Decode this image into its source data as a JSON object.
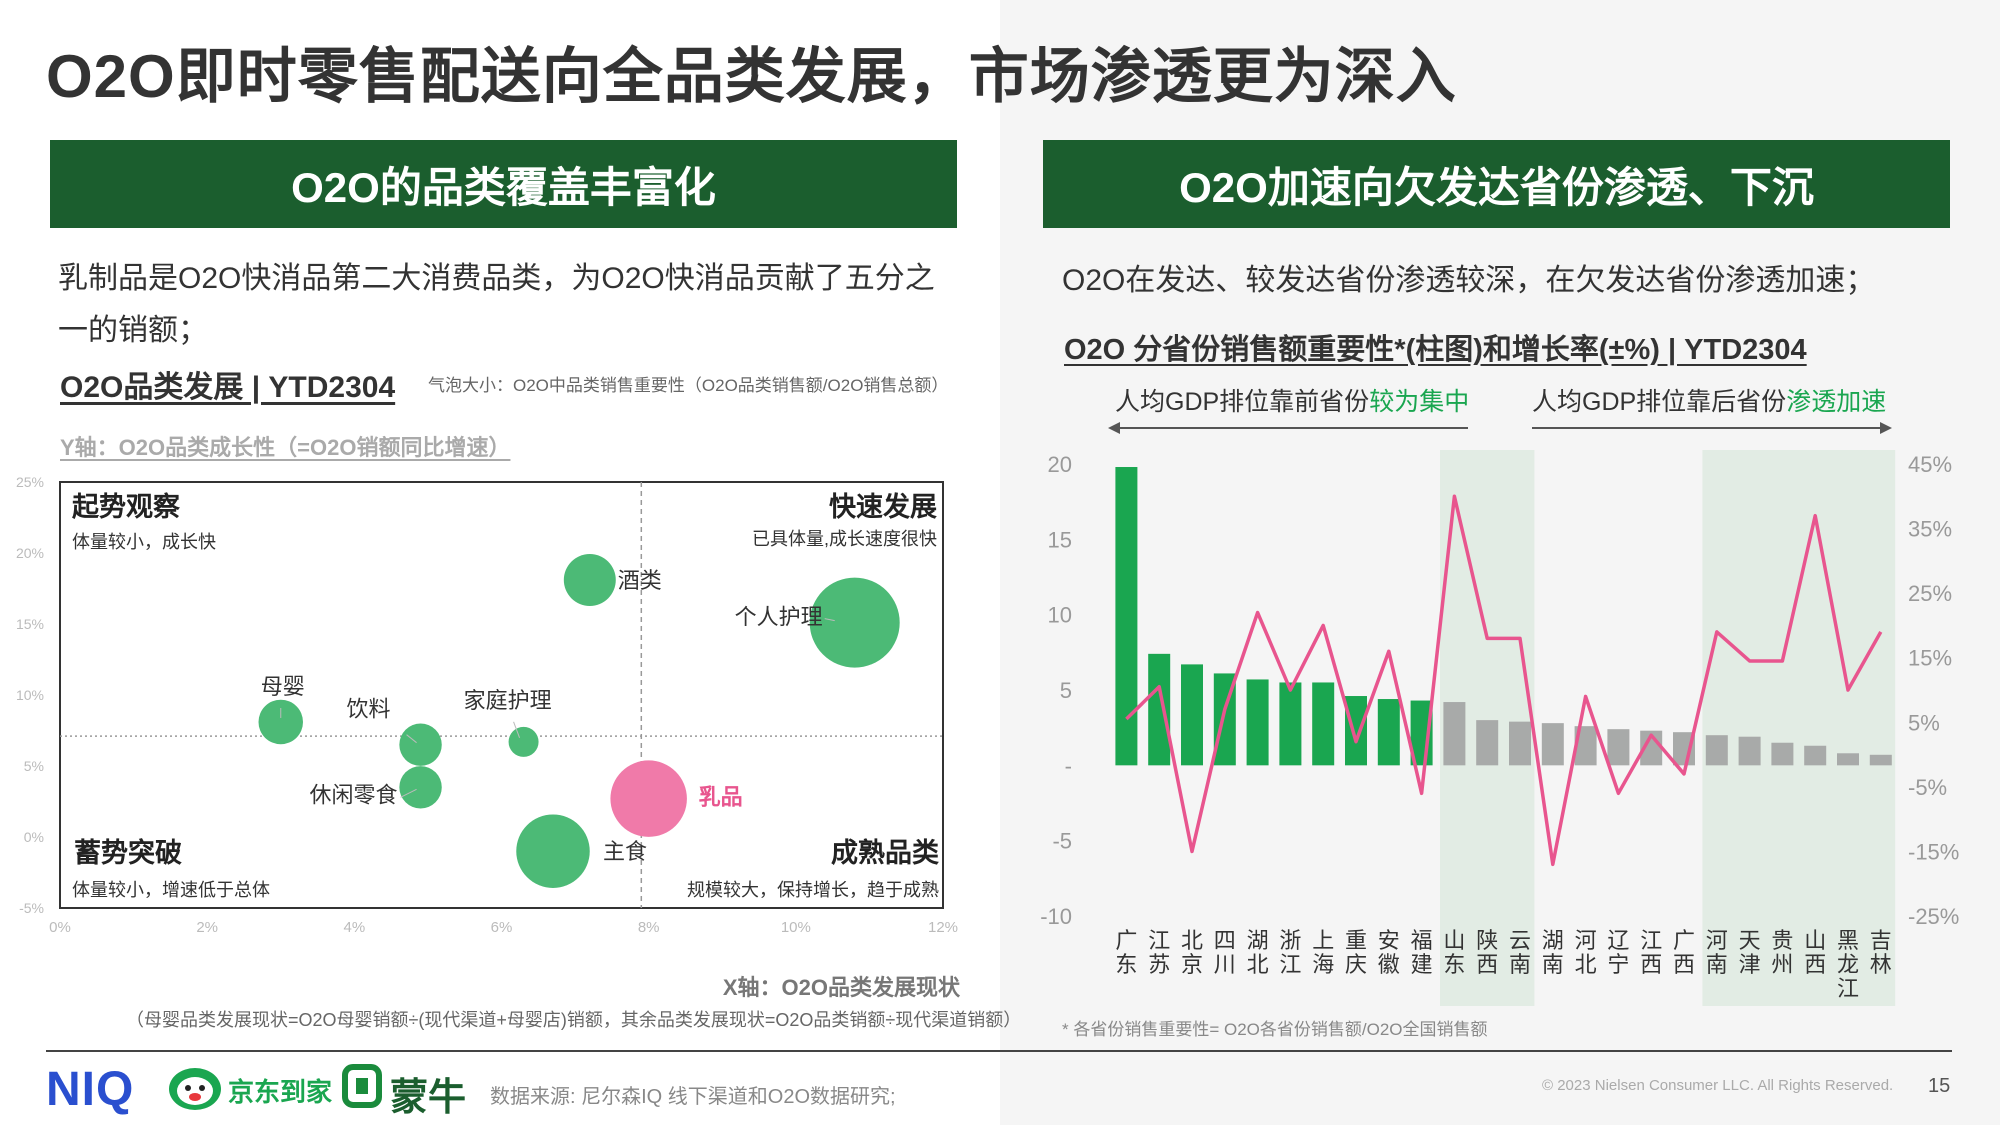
{
  "page": {
    "title": "O2O即时零售配送向全品类发展，市场渗透更为深入",
    "page_number": "15",
    "copyright": "© 2023 Nielsen Consumer LLC. All Rights Reserved.",
    "source": "数据来源: 尼尔森IQ 线下渠道和O2O数据研究;"
  },
  "logos": {
    "niq": "NIQ",
    "jd": "京东到家",
    "mengniu": "蒙牛"
  },
  "colors": {
    "banner": "#1b5e2e",
    "bubble_green": "#4cba76",
    "bubble_pink": "#f07aa9",
    "bar_green": "#1aa650",
    "bar_gray": "#a8aaa9",
    "line_pink": "#e8558e",
    "band": "#e2ece4"
  },
  "left": {
    "banner": "O2O的品类覆盖丰富化",
    "desc1": "乳制品是O2O快消品第二大消费品类，为O2O快消品贡献了五分之",
    "desc2": "一的销额；",
    "subtitle": "O2O品类发展 | YTD2304",
    "bubble_note": "气泡大小：O2O中品类销售重要性（O2O品类销售额/O2O销售总额）",
    "y_axis_title": "Y轴：O2O品类成长性（=O2O销额同比增速）",
    "x_axis_title": "X轴：O2O品类发展现状",
    "x_note": "（母婴品类发展现状=O2O母婴销额÷(现代渠道+母婴店)销额，其余品类发展现状=O2O品类销额÷现代渠道销额）",
    "quadrants": {
      "tl_title": "起势观察",
      "tl_sub": "体量较小，成长快",
      "tr_title": "快速发展",
      "tr_sub": "已具体量,成长速度很快",
      "bl_title": "蓄势突破",
      "bl_sub": "体量较小，增速低于总体",
      "br_title": "成熟品类",
      "br_sub": "规模较大，保持增长，趋于成熟"
    }
  },
  "right": {
    "banner": "O2O加速向欠发达省份渗透、下沉",
    "desc": "O2O在发达、较发达省份渗透较深，在欠发达省份渗透加速；",
    "subtitle": "O2O 分省份销售额重要性*(柱图)和增长率(±%) | YTD2304",
    "note": "* 各省份销售重要性= O2O各省份销售额/O2O全国销售额",
    "arrow_left_plain": "人均GDP排位靠前省份",
    "arrow_left_hl": "较为集中",
    "arrow_right_plain": "人均GDP排位靠后省份",
    "arrow_right_hl": "渗透加速"
  },
  "chart_data": [
    {
      "type": "scatter",
      "title": "O2O品类发展 | YTD2304",
      "xlabel": "X轴：O2O品类发展现状",
      "ylabel": "Y轴：O2O品类成长性（=O2O销额同比增速）",
      "xlim": [
        0,
        12
      ],
      "ylim": [
        -5,
        25
      ],
      "x_ticks": [
        "0%",
        "2%",
        "4%",
        "6%",
        "8%",
        "10%",
        "12%"
      ],
      "y_ticks": [
        "-5%",
        "0%",
        "5%",
        "10%",
        "15%",
        "20%",
        "25%"
      ],
      "reference_x": 7.9,
      "reference_y": 7.1,
      "points": [
        {
          "label": "酒类",
          "x": 7.2,
          "y": 18.1,
          "size": 3.0,
          "highlight": false
        },
        {
          "label": "个人护理",
          "x": 10.8,
          "y": 15.1,
          "size": 9.0,
          "highlight": false
        },
        {
          "label": "母婴",
          "x": 3.0,
          "y": 8.1,
          "size": 2.2,
          "highlight": false
        },
        {
          "label": "饮料",
          "x": 4.9,
          "y": 6.5,
          "size": 2.0,
          "highlight": false
        },
        {
          "label": "家庭护理",
          "x": 6.3,
          "y": 6.7,
          "size": 1.0,
          "highlight": false
        },
        {
          "label": "休闲零食",
          "x": 4.9,
          "y": 3.5,
          "size": 2.0,
          "highlight": false
        },
        {
          "label": "乳品",
          "x": 8.0,
          "y": 2.7,
          "size": 6.5,
          "highlight": true
        },
        {
          "label": "主食",
          "x": 6.7,
          "y": -1.0,
          "size": 6.0,
          "highlight": false
        }
      ]
    },
    {
      "type": "bar",
      "title": "O2O 分省份销售额重要性*(柱图)和增长率(±%) | YTD2304",
      "categories": [
        "广东",
        "江苏",
        "北京",
        "四川",
        "湖北",
        "浙江",
        "上海",
        "重庆",
        "安徽",
        "福建",
        "山东",
        "陕西",
        "云南",
        "湖南",
        "河北",
        "辽宁",
        "江西",
        "广西",
        "河南",
        "天津",
        "贵州",
        "山西",
        "黑龙江",
        "吉林"
      ],
      "ylim": [
        -10,
        20
      ],
      "y_ticks": [
        "-10",
        "-5",
        "-",
        "5",
        "10",
        "15",
        "20"
      ],
      "y2lim": [
        -25,
        45
      ],
      "y2_ticks": [
        "-25%",
        "-15%",
        "-5%",
        "5%",
        "15%",
        "25%",
        "35%",
        "45%"
      ],
      "bar_color_split_index": 10,
      "highlight_bands": [
        [
          10,
          12
        ],
        [
          18,
          23
        ]
      ],
      "series": [
        {
          "kind": "bar",
          "values": [
            19.8,
            7.4,
            6.7,
            6.1,
            5.7,
            5.5,
            5.5,
            4.6,
            4.4,
            4.3,
            4.2,
            3.0,
            2.9,
            2.8,
            2.6,
            2.4,
            2.3,
            2.2,
            2.0,
            1.9,
            1.5,
            1.3,
            0.8,
            0.7
          ]
        },
        {
          "kind": "line",
          "y_axis": "secondary",
          "values": [
            5.5,
            10.5,
            -15.0,
            7.0,
            22.0,
            10.0,
            20.0,
            2.0,
            16.0,
            -6.0,
            40.0,
            18.0,
            18.0,
            -17.0,
            9.0,
            -6.0,
            3.0,
            -3.0,
            19.0,
            14.5,
            14.5,
            37.0,
            10.0,
            19.0
          ]
        }
      ]
    }
  ]
}
